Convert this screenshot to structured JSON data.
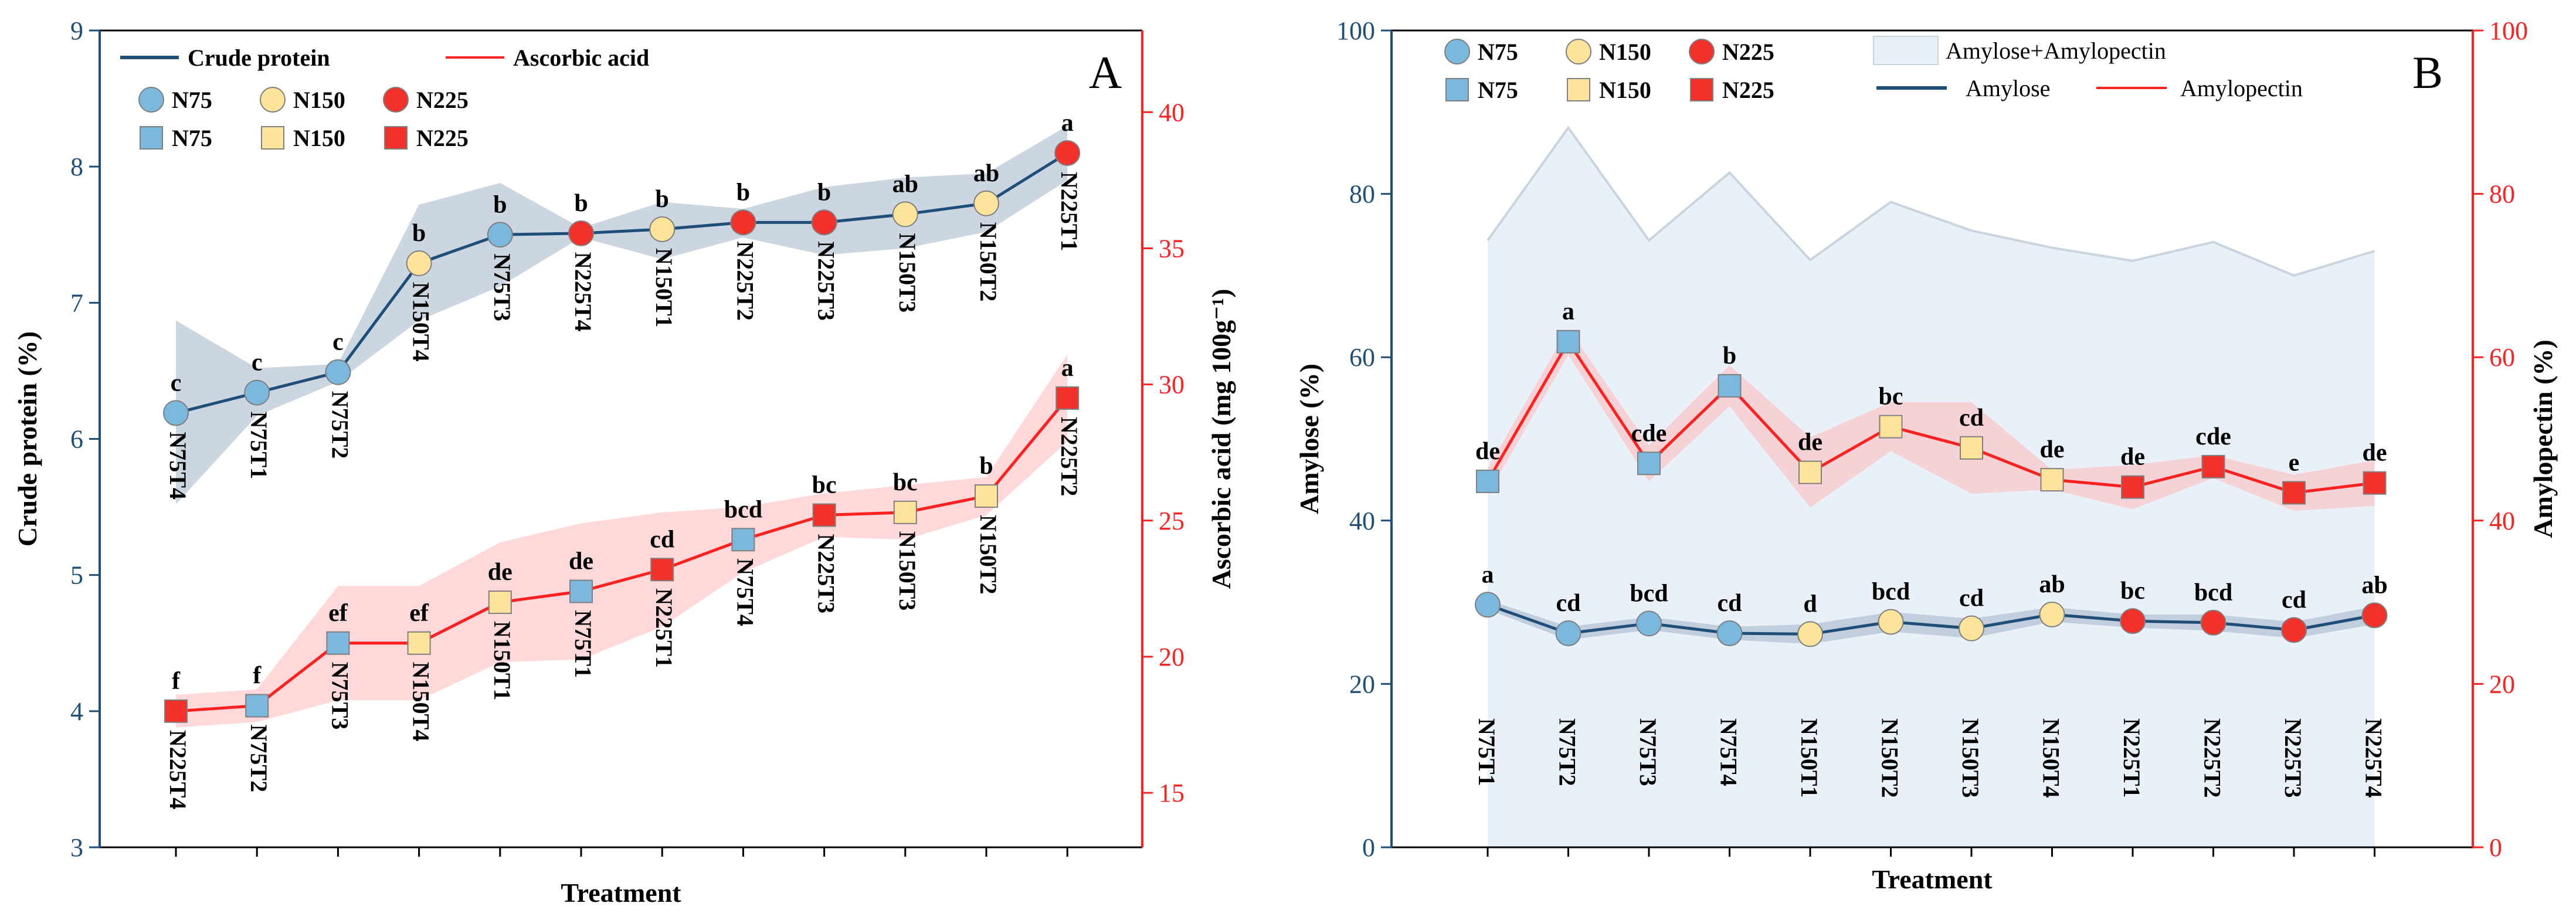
{
  "colors": {
    "navy": "#1f4e79",
    "red": "#ff2020",
    "band_navy": "#8fa4bc",
    "band_red": "#ffb3b3",
    "area_fill": "#e9f0f8",
    "area_line": "#c9d4e0",
    "n75": "#7ab8dd",
    "n150": "#fde49a",
    "n225": "#f2312b"
  },
  "chart_data": [
    {
      "panel": "A",
      "type": "line",
      "xlabel": "Treatment",
      "ylabel_left": "Crude protein (%)",
      "ylabel_right": "Ascorbic acid (mg 100g⁻¹)",
      "ylim_left": [
        3,
        9
      ],
      "ylim_right": [
        13,
        43
      ],
      "yticks_left": [
        "3",
        "4",
        "5",
        "6",
        "7",
        "8",
        "9"
      ],
      "yticks_right": [
        "15",
        "20",
        "25",
        "30",
        "35",
        "40"
      ],
      "legend": {
        "lines": [
          "Crude protein",
          "Ascorbic acid"
        ],
        "circles": [
          "N75",
          "N150",
          "N225"
        ],
        "squares": [
          "N75",
          "N150",
          "N225"
        ]
      },
      "series": [
        {
          "name": "Crude protein",
          "axis": "left",
          "marker": "circle",
          "treatments": [
            "N75T4",
            "N75T1",
            "N75T2",
            "N150T4",
            "N75T3",
            "N225T4",
            "N150T1",
            "N225T2",
            "N225T3",
            "N150T3",
            "N150T2",
            "N225T1"
          ],
          "groups": [
            "N75",
            "N75",
            "N75",
            "N150",
            "N75",
            "N225",
            "N150",
            "N225",
            "N225",
            "N150",
            "N150",
            "N225"
          ],
          "values": [
            6.19,
            6.34,
            6.49,
            7.29,
            7.5,
            7.51,
            7.54,
            7.59,
            7.59,
            7.65,
            7.73,
            8.1
          ],
          "band_upper": [
            6.87,
            6.52,
            6.55,
            7.72,
            7.88,
            7.55,
            7.74,
            7.69,
            7.85,
            7.92,
            7.95,
            8.3
          ],
          "band_lower": [
            5.52,
            6.17,
            6.42,
            6.87,
            7.12,
            7.48,
            7.32,
            7.48,
            7.35,
            7.4,
            7.52,
            7.9
          ],
          "letters": [
            "c",
            "c",
            "c",
            "b",
            "b",
            "b",
            "b",
            "b",
            "b",
            "ab",
            "ab",
            "a"
          ]
        },
        {
          "name": "Ascorbic acid",
          "axis": "right",
          "marker": "square",
          "treatments": [
            "N225T4",
            "N75T2",
            "N75T3",
            "N150T4",
            "N150T1",
            "N75T1",
            "N225T1",
            "N75T4",
            "N225T3",
            "N150T3",
            "N150T2",
            "N225T2"
          ],
          "groups": [
            "N225",
            "N75",
            "N75",
            "N150",
            "N150",
            "N75",
            "N225",
            "N75",
            "N225",
            "N150",
            "N150",
            "N225"
          ],
          "values": [
            18.0,
            18.2,
            20.5,
            20.5,
            22.0,
            22.4,
            23.2,
            24.3,
            25.2,
            25.3,
            25.9,
            29.5
          ],
          "band_upper": [
            18.6,
            18.8,
            22.6,
            22.6,
            24.2,
            24.9,
            25.3,
            25.5,
            26.0,
            26.3,
            26.6,
            31.1
          ],
          "band_lower": [
            17.4,
            17.6,
            18.4,
            18.4,
            19.8,
            19.9,
            21.1,
            23.1,
            24.4,
            24.3,
            25.2,
            27.9
          ],
          "letters": [
            "f",
            "f",
            "ef",
            "ef",
            "de",
            "de",
            "cd",
            "bcd",
            "bc",
            "bc",
            "b",
            "a"
          ]
        }
      ]
    },
    {
      "panel": "B",
      "type": "line",
      "xlabel": "Treatment",
      "ylabel_left": "Amylose (%)",
      "ylabel_right": "Amylopectin (%)",
      "ylim_left": [
        0,
        100
      ],
      "ylim_right": [
        0,
        100
      ],
      "yticks_left": [
        "0",
        "20",
        "40",
        "60",
        "80",
        "100"
      ],
      "yticks_right": [
        "0",
        "20",
        "40",
        "60",
        "80",
        "100"
      ],
      "legend": {
        "circles": [
          "N75",
          "N150",
          "N225"
        ],
        "squares": [
          "N75",
          "N150",
          "N225"
        ],
        "area": "Amylose+Amylopectin",
        "lines": [
          "Amylose",
          "Amylopectin"
        ]
      },
      "categories": [
        "N75T1",
        "N75T2",
        "N75T3",
        "N75T4",
        "N150T1",
        "N150T2",
        "N150T3",
        "N150T4",
        "N225T1",
        "N225T2",
        "N225T3",
        "N225T4"
      ],
      "groups": [
        "N75",
        "N75",
        "N75",
        "N75",
        "N150",
        "N150",
        "N150",
        "N150",
        "N225",
        "N225",
        "N225",
        "N225"
      ],
      "total": [
        74.3,
        88.1,
        74.3,
        82.6,
        71.9,
        79.0,
        75.5,
        73.4,
        71.8,
        74.1,
        70.0,
        73.0
      ],
      "series": [
        {
          "name": "Amylose",
          "axis": "left",
          "marker": "circle",
          "values": [
            29.7,
            26.2,
            27.4,
            26.2,
            26.1,
            27.6,
            26.8,
            28.5,
            27.7,
            27.5,
            26.6,
            28.4
          ],
          "band_upper": [
            30.3,
            27.0,
            28.2,
            27.0,
            27.3,
            28.8,
            28.0,
            29.4,
            28.5,
            28.5,
            27.6,
            29.5
          ],
          "band_lower": [
            29.1,
            25.4,
            26.6,
            25.4,
            24.9,
            26.4,
            25.6,
            27.6,
            26.9,
            26.5,
            25.6,
            27.3
          ],
          "letters": [
            "a",
            "cd",
            "bcd",
            "cd",
            "d",
            "bcd",
            "cd",
            "ab",
            "bc",
            "bcd",
            "cd",
            "ab"
          ]
        },
        {
          "name": "Amylopectin",
          "axis": "right",
          "marker": "square",
          "values": [
            44.8,
            61.9,
            47.0,
            56.5,
            45.9,
            51.5,
            48.9,
            45.0,
            44.1,
            46.6,
            43.4,
            44.6
          ],
          "band_upper": [
            46.4,
            63.5,
            49.2,
            59.0,
            50.2,
            54.5,
            54.5,
            46.2,
            46.8,
            48.0,
            45.6,
            47.4
          ],
          "band_lower": [
            43.2,
            60.3,
            44.8,
            54.0,
            41.6,
            48.5,
            43.3,
            43.8,
            41.4,
            45.2,
            41.2,
            41.8
          ],
          "letters": [
            "de",
            "a",
            "cde",
            "b",
            "de",
            "bc",
            "cd",
            "de",
            "de",
            "cde",
            "e",
            "de"
          ]
        }
      ]
    }
  ]
}
